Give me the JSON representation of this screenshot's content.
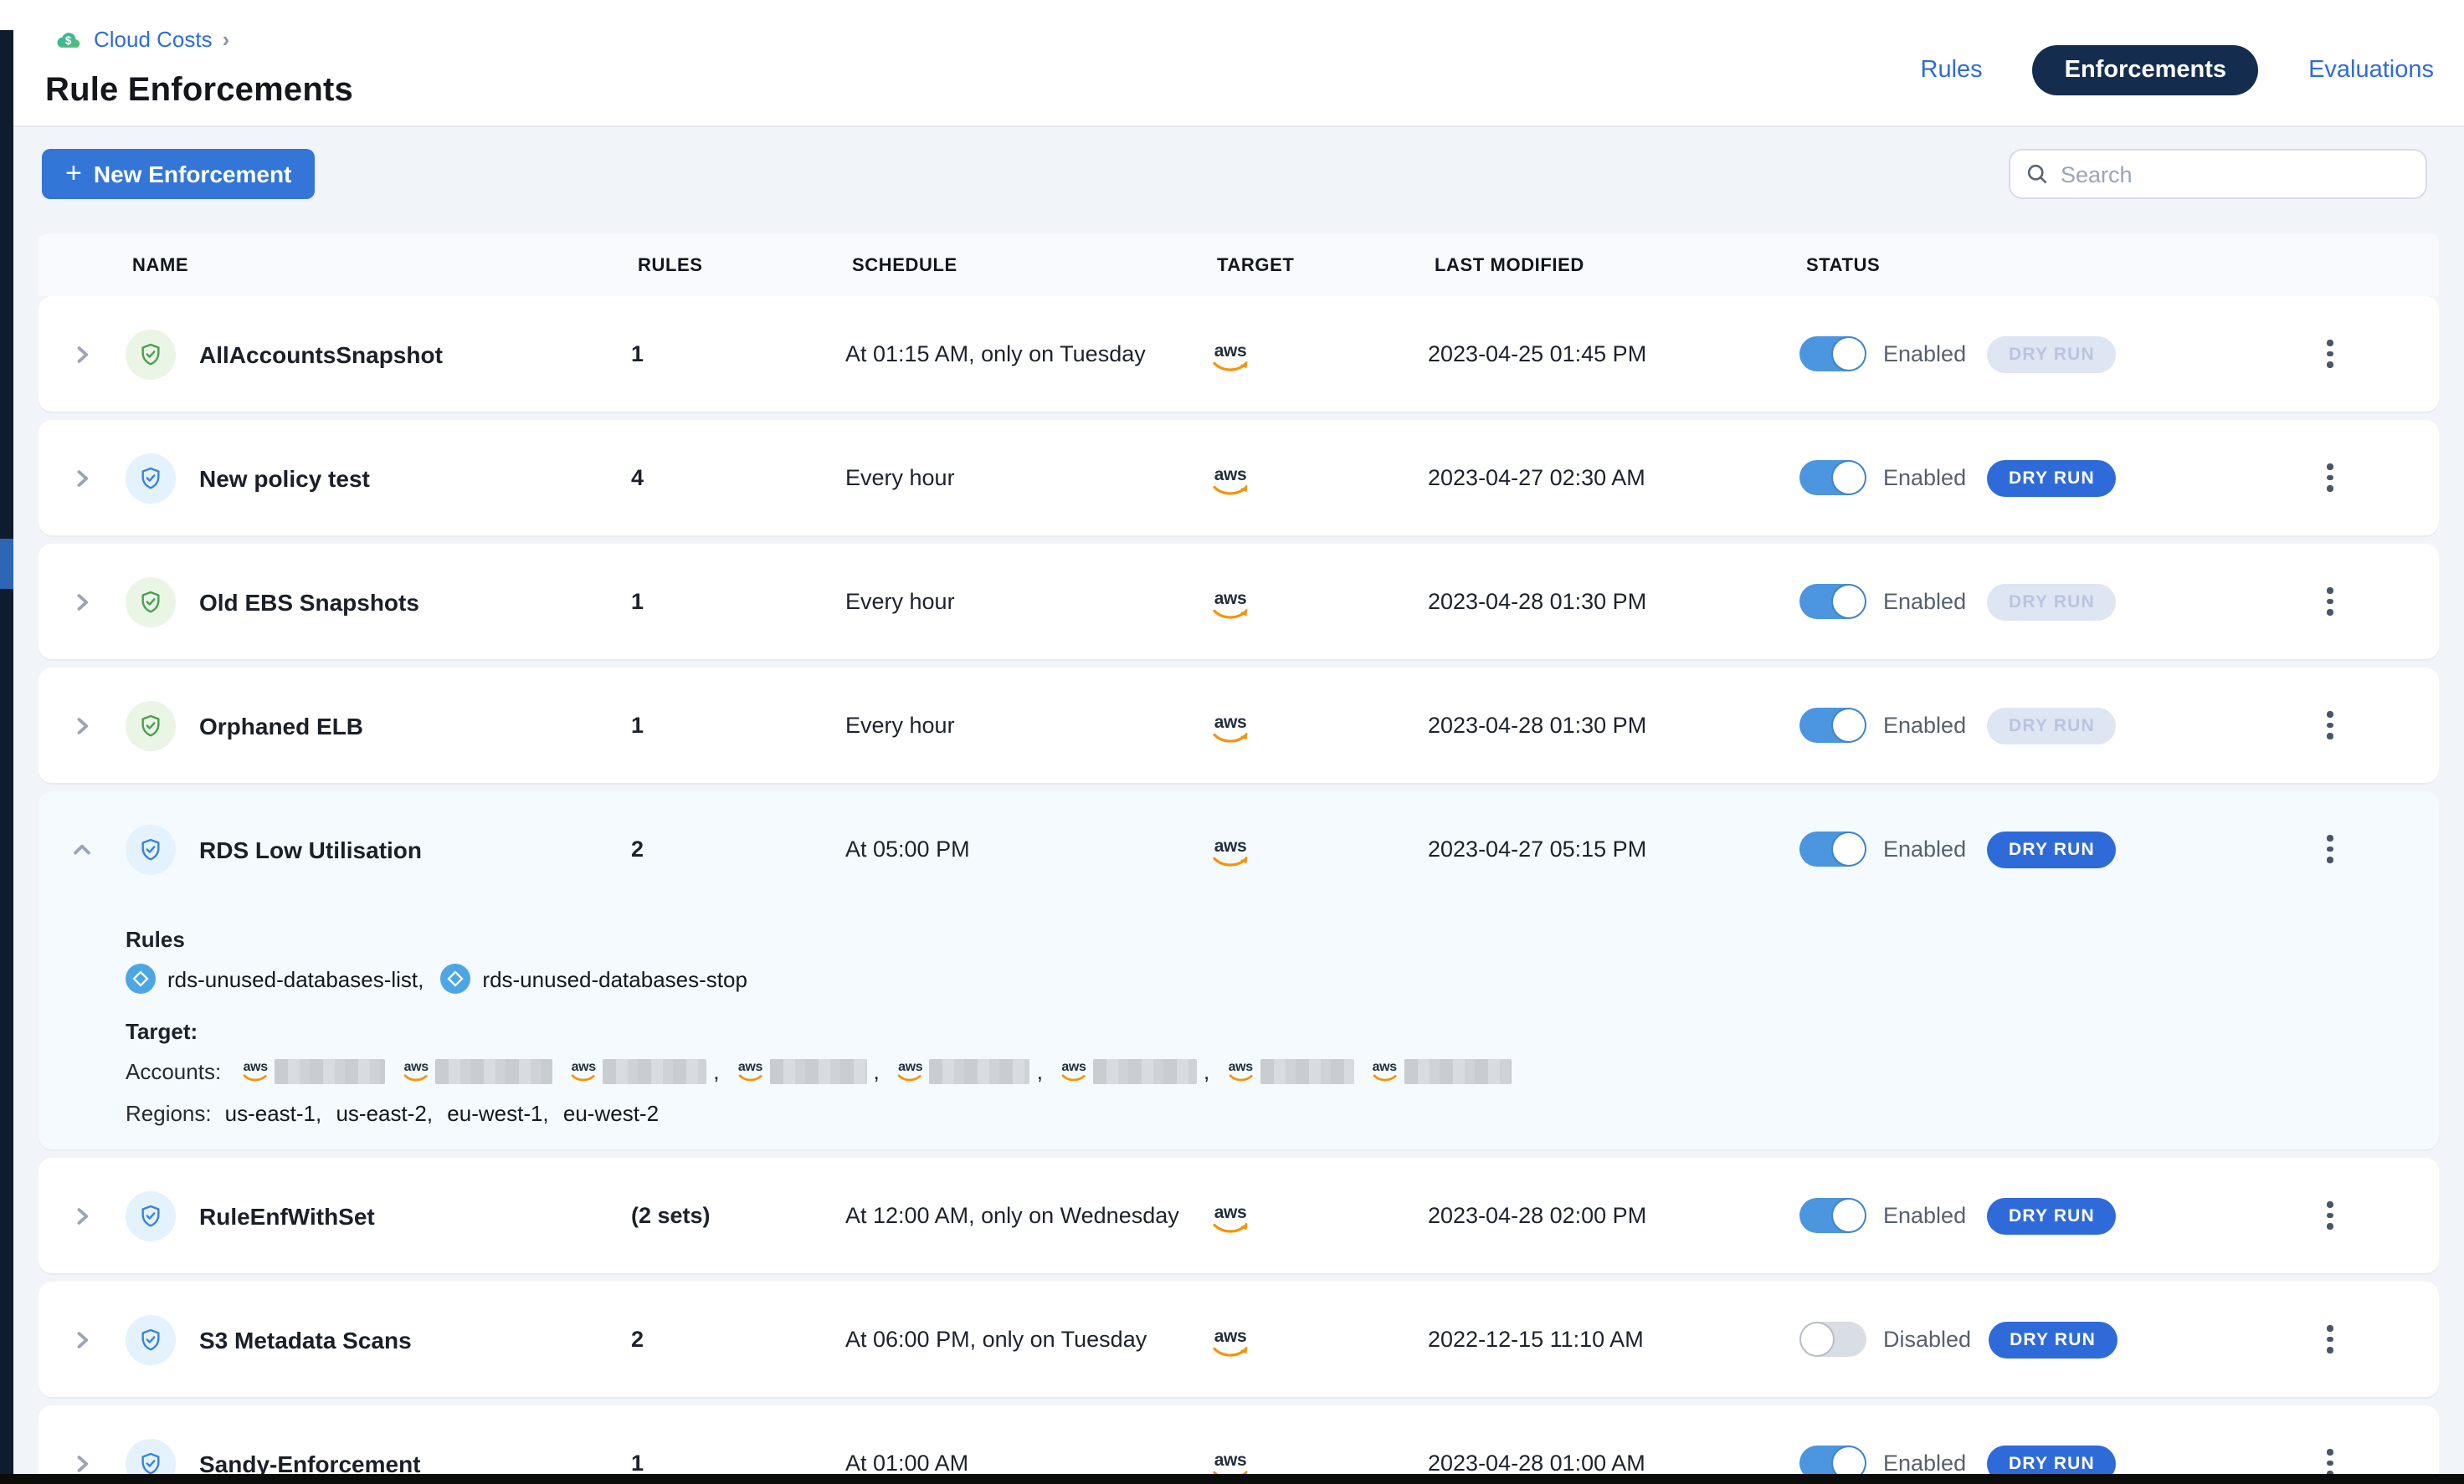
{
  "breadcrumb": {
    "label": "Cloud Costs",
    "chevron": "›"
  },
  "page": {
    "title": "Rule Enforcements"
  },
  "tabs": {
    "rules": "Rules",
    "enforcements": "Enforcements",
    "evaluations": "Evaluations",
    "active": "Enforcements"
  },
  "toolbar": {
    "plus": "+",
    "new_button": "New Enforcement",
    "search_placeholder": "Search"
  },
  "colors": {
    "accent_blue": "#3376D8",
    "pill_navy": "#142D4F",
    "toggle_on": "#4B96DF",
    "dry_run_on": "#2F6BD8",
    "dry_run_off_bg": "#DEE5F3",
    "icon_green": "#4A9F4E",
    "icon_blue": "#3B82D8"
  },
  "table": {
    "columns": [
      "NAME",
      "RULES",
      "SCHEDULE",
      "TARGET",
      "LAST MODIFIED",
      "STATUS"
    ],
    "dry_run_label": "DRY RUN",
    "rows": [
      {
        "name": "AllAccountsSnapshot",
        "rules": "1",
        "schedule": "At 01:15 AM, only on Tuesday",
        "target": "aws",
        "modified": "2023-04-25 01:45 PM",
        "status_label": "Enabled",
        "enabled": true,
        "dry_run_active": false,
        "icon": "green",
        "expanded": false
      },
      {
        "name": "New policy test",
        "rules": "4",
        "schedule": "Every hour",
        "target": "aws",
        "modified": "2023-04-27 02:30 AM",
        "status_label": "Enabled",
        "enabled": true,
        "dry_run_active": true,
        "icon": "blue",
        "expanded": false
      },
      {
        "name": "Old EBS Snapshots",
        "rules": "1",
        "schedule": "Every hour",
        "target": "aws",
        "modified": "2023-04-28 01:30 PM",
        "status_label": "Enabled",
        "enabled": true,
        "dry_run_active": false,
        "icon": "green",
        "expanded": false
      },
      {
        "name": "Orphaned ELB",
        "rules": "1",
        "schedule": "Every hour",
        "target": "aws",
        "modified": "2023-04-28 01:30 PM",
        "status_label": "Enabled",
        "enabled": true,
        "dry_run_active": false,
        "icon": "green",
        "expanded": false
      },
      {
        "name": "RDS Low Utilisation",
        "rules": "2",
        "schedule": "At 05:00 PM",
        "target": "aws",
        "modified": "2023-04-27 05:15 PM",
        "status_label": "Enabled",
        "enabled": true,
        "dry_run_active": true,
        "icon": "blue",
        "expanded": true
      },
      {
        "name": "RuleEnfWithSet",
        "rules": "(2 sets)",
        "schedule": "At 12:00 AM, only on Wednesday",
        "target": "aws",
        "modified": "2023-04-28 02:00 PM",
        "status_label": "Enabled",
        "enabled": true,
        "dry_run_active": true,
        "icon": "blue",
        "expanded": false
      },
      {
        "name": "S3 Metadata Scans",
        "rules": "2",
        "schedule": "At 06:00 PM, only on Tuesday",
        "target": "aws",
        "modified": "2022-12-15 11:10 AM",
        "status_label": "Disabled",
        "enabled": false,
        "dry_run_active": true,
        "icon": "blue",
        "expanded": false
      },
      {
        "name": "Sandy-Enforcement",
        "rules": "1",
        "schedule": "At 01:00 AM",
        "target": "aws",
        "modified": "2023-04-28 01:00 AM",
        "status_label": "Enabled",
        "enabled": true,
        "dry_run_active": true,
        "icon": "blue",
        "expanded": false
      }
    ]
  },
  "expanded_details": {
    "rules_label": "Rules",
    "rule_chips": [
      "rds-unused-databases-list,",
      "rds-unused-databases-stop"
    ],
    "target_label": "Target:",
    "accounts_label": "Accounts:",
    "accounts": [
      {
        "label": "aws",
        "redacted": true,
        "trailing": ""
      },
      {
        "label": "aws",
        "redacted": true,
        "trailing": ""
      },
      {
        "label": "aws",
        "redacted": true,
        "trailing": ","
      },
      {
        "label": "aws",
        "redacted": true,
        "trailing": ","
      },
      {
        "label": "aws",
        "redacted": true,
        "trailing": ","
      },
      {
        "label": "aws",
        "redacted": true,
        "trailing": ","
      },
      {
        "label": "aws",
        "redacted": true,
        "trailing": ""
      },
      {
        "label": "aws",
        "redacted": true,
        "trailing": ""
      }
    ],
    "regions_label": "Regions:",
    "regions_text": "us-east-1,  us-east-2,  eu-west-1,  eu-west-2"
  }
}
